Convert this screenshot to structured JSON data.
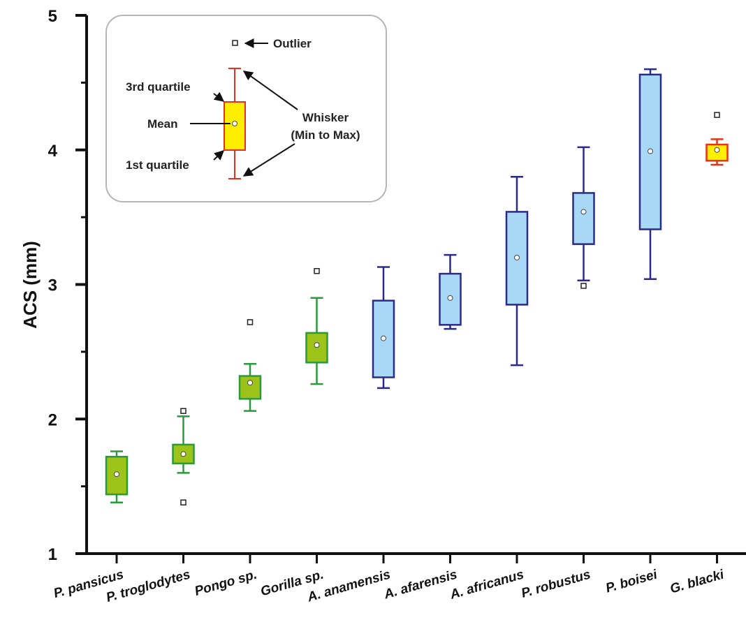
{
  "chart_data": {
    "type": "box",
    "ylabel": "ACS (mm)",
    "xlabel": "",
    "ylim": [
      1,
      5
    ],
    "yticks": [
      "1",
      "2",
      "3",
      "4",
      "5"
    ],
    "grid": false,
    "categories": [
      "P. pansicus",
      "P. troglodytes",
      "Pongo sp.",
      "Gorilla sp.",
      "A. anamensis",
      "A. afarensis",
      "A. africanus",
      "P. robustus",
      "P. boisei",
      "G. blacki"
    ],
    "boxes": [
      {
        "group": "ape",
        "min": 1.38,
        "q1": 1.44,
        "mean": 1.59,
        "q3": 1.72,
        "max": 1.76,
        "outliers": []
      },
      {
        "group": "ape",
        "min": 1.6,
        "q1": 1.67,
        "mean": 1.74,
        "q3": 1.81,
        "max": 2.02,
        "outliers": [
          2.06,
          1.38
        ]
      },
      {
        "group": "ape",
        "min": 2.06,
        "q1": 2.15,
        "mean": 2.27,
        "q3": 2.32,
        "max": 2.41,
        "outliers": [
          2.72
        ]
      },
      {
        "group": "ape",
        "min": 2.26,
        "q1": 2.42,
        "mean": 2.55,
        "q3": 2.64,
        "max": 2.9,
        "outliers": [
          3.1
        ]
      },
      {
        "group": "hominin",
        "min": 2.23,
        "q1": 2.31,
        "mean": 2.6,
        "q3": 2.88,
        "max": 3.13,
        "outliers": []
      },
      {
        "group": "hominin",
        "min": 2.67,
        "q1": 2.7,
        "mean": 2.9,
        "q3": 3.08,
        "max": 3.22,
        "outliers": []
      },
      {
        "group": "hominin",
        "min": 2.4,
        "q1": 2.85,
        "mean": 3.2,
        "q3": 3.54,
        "max": 3.8,
        "outliers": []
      },
      {
        "group": "hominin",
        "min": 3.03,
        "q1": 3.3,
        "mean": 3.54,
        "q3": 3.68,
        "max": 4.02,
        "outliers": [
          2.99
        ]
      },
      {
        "group": "hominin",
        "min": 3.04,
        "q1": 3.41,
        "mean": 3.99,
        "q3": 4.56,
        "max": 4.6,
        "outliers": []
      },
      {
        "group": "gigantopithecus",
        "min": 3.89,
        "q1": 3.92,
        "mean": 4.0,
        "q3": 4.04,
        "max": 4.08,
        "outliers": [
          4.26
        ]
      }
    ],
    "colors": {
      "ape": {
        "fill": "#9dc21a",
        "stroke": "#2a9a3a"
      },
      "hominin": {
        "fill": "#a8d8f5",
        "stroke": "#2a2a8a"
      },
      "gigantopithecus": {
        "fill": "#ffee00",
        "stroke": "#e8301a"
      }
    },
    "legend": {
      "outlier": "Outlier",
      "third_quartile": "3rd quartile",
      "mean": "Mean",
      "first_quartile": "1st quartile",
      "whisker_line1": "Whisker",
      "whisker_line2": "(Min to Max)"
    }
  }
}
